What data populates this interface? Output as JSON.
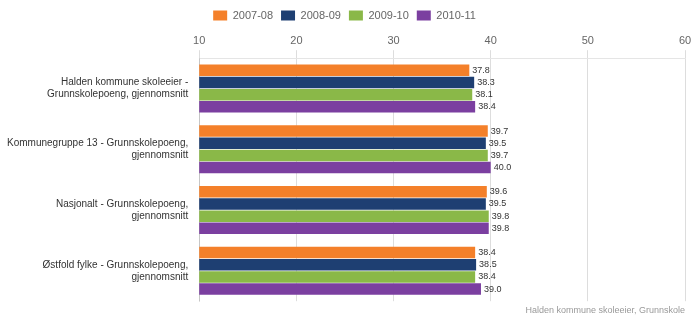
{
  "chart_data": {
    "type": "bar",
    "orientation": "horizontal",
    "categories": [
      "Halden kommune skoleeier -\nGrunnskolepoeng, gjennomsnitt",
      "Kommunegruppe 13 - Grunnskolepoeng,\ngjennomsnitt",
      "Nasjonalt - Grunnskolepoeng,\ngjennomsnitt",
      "Østfold fylke - Grunnskolepoeng,\ngjennomsnitt"
    ],
    "series": [
      {
        "name": "2007-08",
        "color": "#F4802A",
        "values": [
          37.8,
          39.7,
          39.6,
          38.4
        ]
      },
      {
        "name": "2008-09",
        "color": "#1E3F72",
        "values": [
          38.3,
          39.5,
          39.5,
          38.5
        ]
      },
      {
        "name": "2009-10",
        "color": "#8AB848",
        "values": [
          38.1,
          39.7,
          39.8,
          38.4
        ]
      },
      {
        "name": "2010-11",
        "color": "#7B3FA0",
        "values": [
          38.4,
          40.0,
          39.8,
          39.0
        ],
        "value_labels": [
          "38.4",
          "40.0",
          "39.8",
          "39.0"
        ]
      }
    ],
    "xlim": [
      10,
      60
    ],
    "xticks": [
      10,
      20,
      30,
      40,
      50,
      60
    ],
    "grid": true,
    "legend": "top",
    "data_labels": true,
    "footnote": "Halden kommune skoleeier, Grunnskole"
  }
}
